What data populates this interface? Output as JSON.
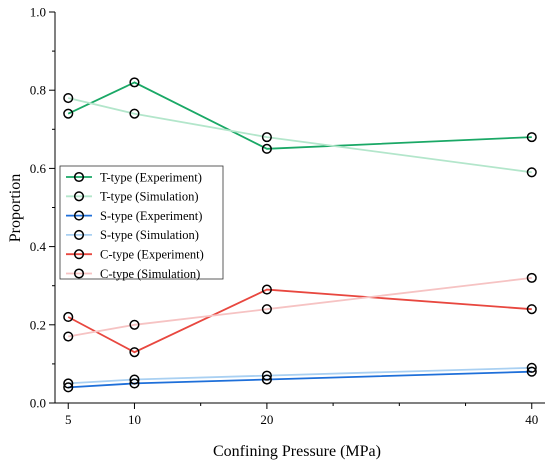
{
  "chart_data": {
    "type": "line",
    "title": "",
    "xlabel": "Confining Pressure (MPa)",
    "ylabel": "Proportion",
    "xlim": [
      4,
      41
    ],
    "ylim": [
      0,
      1.0
    ],
    "x_ticks": [
      5,
      10,
      20,
      40
    ],
    "y_ticks": [
      0.0,
      0.2,
      0.4,
      0.6,
      0.8,
      1.0
    ],
    "y_tick_labels": [
      "0.0",
      "0.2",
      "0.4",
      "0.6",
      "0.8",
      "1.0"
    ],
    "grid": false,
    "legend_position": "center-left",
    "marker": "open-circle",
    "series": [
      {
        "name": "T-type (Experiment)",
        "color": "#1aa866",
        "x": [
          5,
          10,
          20,
          40
        ],
        "values": [
          0.74,
          0.82,
          0.65,
          0.68
        ]
      },
      {
        "name": "T-type (Simulation)",
        "color": "#b3e6cb",
        "x": [
          5,
          10,
          20,
          40
        ],
        "values": [
          0.78,
          0.74,
          0.68,
          0.59
        ]
      },
      {
        "name": "S-type (Experiment)",
        "color": "#1e6fd9",
        "x": [
          5,
          10,
          20,
          40
        ],
        "values": [
          0.04,
          0.05,
          0.06,
          0.08
        ]
      },
      {
        "name": "S-type (Simulation)",
        "color": "#a9d0f2",
        "x": [
          5,
          10,
          20,
          40
        ],
        "values": [
          0.05,
          0.06,
          0.07,
          0.09
        ]
      },
      {
        "name": "C-type (Experiment)",
        "color": "#e8473f",
        "x": [
          5,
          10,
          20,
          40
        ],
        "values": [
          0.22,
          0.13,
          0.29,
          0.24
        ]
      },
      {
        "name": "C-type (Simulation)",
        "color": "#f6c3c3",
        "x": [
          5,
          10,
          20,
          40
        ],
        "values": [
          0.17,
          0.2,
          0.24,
          0.32
        ]
      }
    ]
  }
}
